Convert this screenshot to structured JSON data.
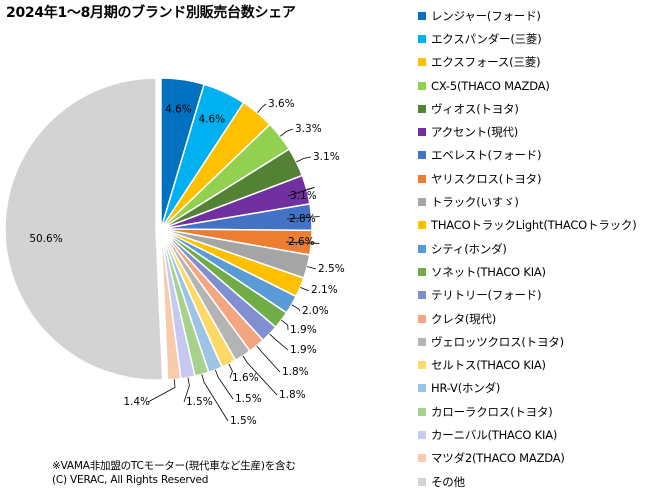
{
  "title": "2024年1～8月期のブランド別販売台数シェア",
  "footnote": "※VAMA非加盟のTCモーター(現代車など生産)を含む",
  "copyright": "(C) VERAC, All Rights Reserved",
  "chart_data": {
    "type": "pie",
    "title": "2024年1～8月期のブランド別販売台数シェア",
    "legend_position": "right",
    "categories": [
      "レンジャー(フォード)",
      "エクスパンダー(三菱)",
      "エクスフォース(三菱)",
      "CX-5(THACO MAZDA)",
      "ヴィオス(トヨタ)",
      "アクセント(現代)",
      "エベレスト(フォード)",
      "ヤリスクロス(トヨタ)",
      "トラック(いすゞ)",
      "THACOトラックLight(THACOトラック)",
      "シティ(ホンダ)",
      "ソネット(THACO KIA)",
      "テリトリー(フォード)",
      "クレタ(現代)",
      "ヴェロッツクロス(トヨタ)",
      "セルトス(THACO KIA)",
      "HR-V(ホンダ)",
      "カローラクロス(トヨタ)",
      "カーニバル(THACO KIA)",
      "マツダ2(THACO MAZDA)",
      "その他"
    ],
    "values": [
      4.6,
      4.6,
      3.6,
      3.3,
      3.1,
      3.1,
      2.8,
      2.6,
      2.5,
      2.1,
      2.0,
      1.9,
      1.9,
      1.8,
      1.8,
      1.6,
      1.5,
      1.5,
      1.5,
      1.4,
      50.6
    ],
    "labels": [
      "4.6%",
      "4.6%",
      "3.6%",
      "3.3%",
      "3.1%",
      "3.1%",
      "2.8%",
      "2.6%",
      "2.5%",
      "2.1%",
      "2.0%",
      "1.9%",
      "1.9%",
      "1.8%",
      "1.8%",
      "1.6%",
      "1.5%",
      "1.5%",
      "1.5%",
      "1.4%",
      "50.6%"
    ],
    "colors": [
      "#0070c0",
      "#00b0f0",
      "#ffc000",
      "#92d050",
      "#548235",
      "#7030a0",
      "#4472c4",
      "#ed7d31",
      "#a5a5a5",
      "#ffc000",
      "#5b9bd5",
      "#70ad47",
      "#7f8fd0",
      "#f4a582",
      "#b4b4b4",
      "#ffd966",
      "#9dc3e6",
      "#a9d18e",
      "#c5c9ef",
      "#f8cbad",
      "#d3d3d3"
    ],
    "exploded": "その他"
  }
}
